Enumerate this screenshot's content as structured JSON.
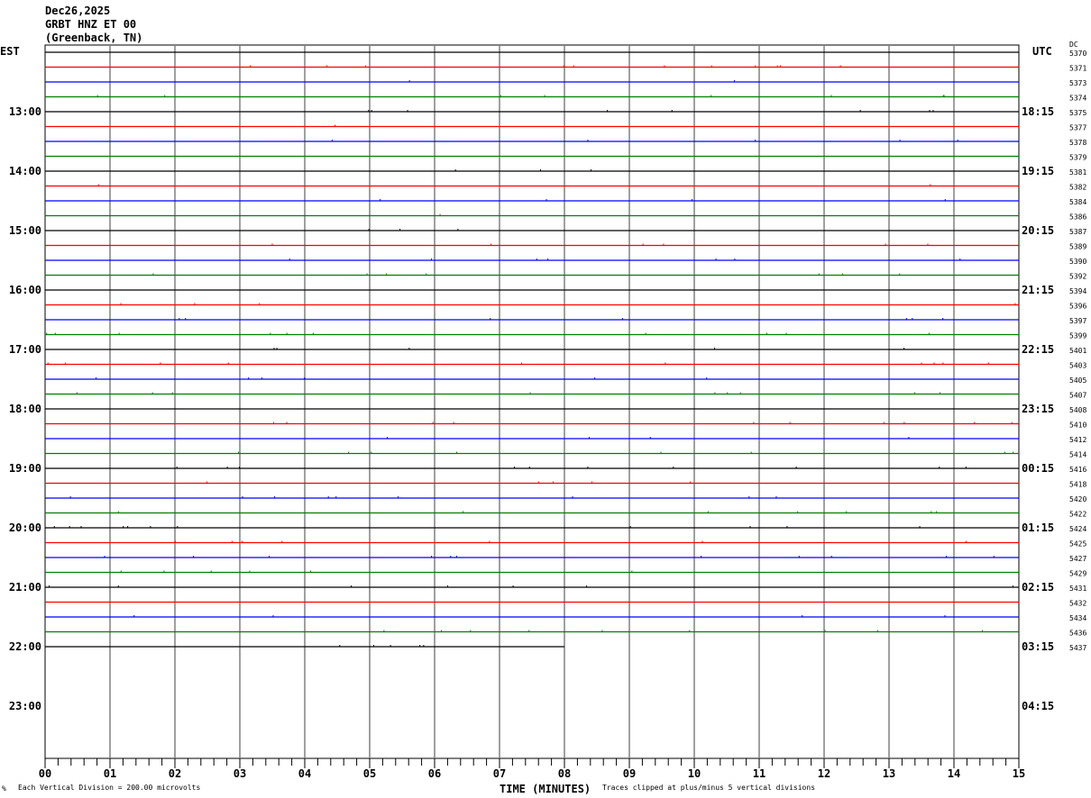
{
  "header": {
    "date": "Dec26,2025",
    "station": "GRBT HNZ ET 00",
    "location": "(Greenback, TN)"
  },
  "left_timezone": "EST",
  "right_timezone": "UTC",
  "dc_header": "DC",
  "colors": {
    "trace_cycle": [
      "#000000",
      "#ff0000",
      "#0000ff",
      "#008000"
    ],
    "grid": "#808080"
  },
  "chart_data": {
    "type": "line",
    "subtype": "helicorder",
    "xlabel": "TIME (MINUTES)",
    "x_ticks": [
      "00",
      "01",
      "02",
      "03",
      "04",
      "05",
      "06",
      "07",
      "08",
      "09",
      "10",
      "11",
      "12",
      "13",
      "14",
      "15"
    ],
    "xlim": [
      0,
      15
    ],
    "left_hour_labels": [
      "13:00",
      "14:00",
      "15:00",
      "16:00",
      "17:00",
      "18:00",
      "19:00",
      "20:00",
      "21:00",
      "22:00",
      "23:00"
    ],
    "right_hour_labels": [
      "18:15",
      "19:15",
      "20:15",
      "21:15",
      "22:15",
      "23:15",
      "00:15",
      "01:15",
      "02:15",
      "03:15",
      "04:15"
    ],
    "dc_offsets": [
      5370,
      5371,
      5373,
      5374,
      5375,
      5377,
      5378,
      5379,
      5381,
      5382,
      5384,
      5386,
      5387,
      5389,
      5390,
      5392,
      5394,
      5396,
      5397,
      5399,
      5401,
      5403,
      5405,
      5407,
      5408,
      5410,
      5412,
      5414,
      5416,
      5418,
      5420,
      5422,
      5424,
      5425,
      5427,
      5429,
      5431,
      5432,
      5434,
      5436,
      5437
    ],
    "last_trace_end_minute": 8,
    "grid": true
  },
  "footer": {
    "scale_note": "Each Vertical Division =  200.00 microvolts",
    "clip_note": "Traces clipped at plus/minus 5 vertical divisions",
    "corner_mark": "%"
  }
}
